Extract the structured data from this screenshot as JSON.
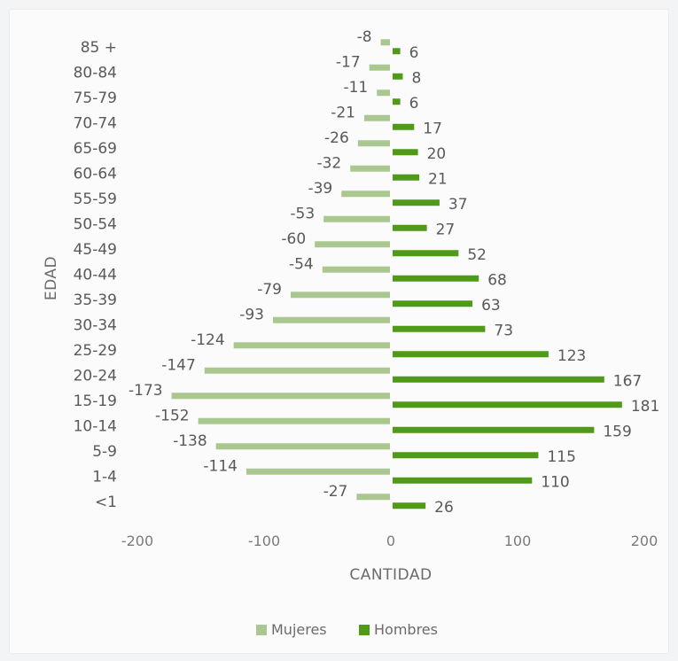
{
  "chart_data": {
    "type": "bar",
    "orientation": "horizontal",
    "categories": [
      "85 +",
      "80-84",
      "75-79",
      "70-74",
      "65-69",
      "60-64",
      "55-59",
      "50-54",
      "45-49",
      "40-44",
      "35-39",
      "30-34",
      "25-29",
      "20-24",
      "15-19",
      "10-14",
      "5-9",
      "1-4",
      "<1"
    ],
    "series": [
      {
        "name": "Mujeres",
        "color": "#a9c78f",
        "values": [
          -8,
          -17,
          -11,
          -21,
          -26,
          -32,
          -39,
          -53,
          -60,
          -54,
          -79,
          -93,
          -124,
          -147,
          -173,
          -152,
          -138,
          -114,
          -27
        ]
      },
      {
        "name": "Hombres",
        "color": "#4f9a18",
        "values": [
          6,
          8,
          6,
          17,
          20,
          21,
          37,
          27,
          52,
          68,
          63,
          73,
          123,
          167,
          181,
          159,
          115,
          110,
          26
        ]
      }
    ],
    "xlabel": "CANTIDAD",
    "ylabel": "EDAD",
    "xlim": [
      -200,
      200
    ],
    "xticks": [
      -200,
      -100,
      0,
      100,
      200
    ],
    "grid": false,
    "legend": "bottom"
  }
}
